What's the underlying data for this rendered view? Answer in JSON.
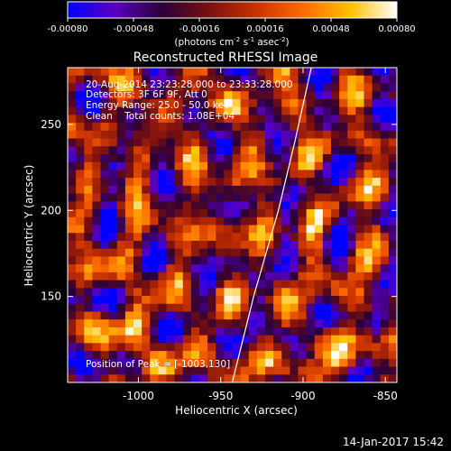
{
  "chart_data": {
    "type": "heatmap",
    "colorbar": {
      "min": -0.0008,
      "max": 0.0008,
      "tick_values": [
        -0.0008,
        -0.00048,
        -0.00016,
        0.00016,
        0.00048,
        0.0008
      ],
      "tick_labels": [
        "-0.00080",
        "-0.00048",
        "-0.00016",
        "0.00016",
        "0.00048",
        "0.00080"
      ],
      "unit_prefix": "(photons cm",
      "unit_exp1": "-2",
      "unit_mid": " s",
      "unit_exp2": "-1",
      "unit_mid2": " asec",
      "unit_exp3": "-2",
      "unit_suffix": ")",
      "colors": [
        "#0000ff",
        "#5b00c0",
        "#2a003a",
        "#7a1010",
        "#c83200",
        "#ff6a00",
        "#ffc000",
        "#ffffff"
      ]
    },
    "title": "Reconstructed RHESSI Image",
    "annotations": [
      "20-Aug-2014 23:23:28.000 to 23:33:28.000",
      "Detectors: 3F 6F 9F, Att 0",
      "Energy Range: 25.0 - 50.0 keV",
      "Clean    Total counts: 1.08E+04"
    ],
    "peak_label": "Position of Peak = [-1003,130]",
    "peak_position": [
      -1003,
      130
    ],
    "xlabel": "Heliocentric X (arcsec)",
    "ylabel": "Heliocentric Y (arcsec)",
    "xlim": [
      -1043,
      -843
    ],
    "ylim": [
      100,
      283
    ],
    "xticks": [
      -1000,
      -950,
      -900,
      -850
    ],
    "xtick_labels": [
      "-1000",
      "-950",
      "-900",
      "-850"
    ],
    "yticks": [
      150,
      200,
      250
    ],
    "ytick_labels": [
      "150",
      "200",
      "250"
    ],
    "limb_curve": [
      [
        -943,
        100
      ],
      [
        -930,
        150
      ],
      [
        -915,
        200
      ],
      [
        -905,
        240
      ],
      [
        -895,
        283
      ]
    ],
    "grid_cells": [
      40,
      40
    ]
  },
  "timestamp": "14-Jan-2017 15:42"
}
